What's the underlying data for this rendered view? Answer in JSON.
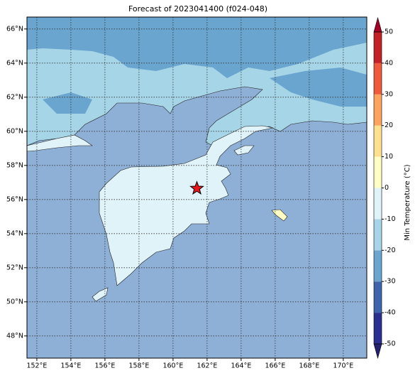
{
  "title": "Forecast of 2023041400 (f024-048)",
  "map": {
    "lonlim": [
      151.42,
      171.38
    ],
    "latlim": [
      46.7,
      66.7
    ],
    "lonticks": [
      {
        "value": 152,
        "label": "152°E"
      },
      {
        "value": 154,
        "label": "154°E"
      },
      {
        "value": 156,
        "label": "156°E"
      },
      {
        "value": 158,
        "label": "158°E"
      },
      {
        "value": 160,
        "label": "160°E"
      },
      {
        "value": 162,
        "label": "162°E"
      },
      {
        "value": 164,
        "label": "164°E"
      },
      {
        "value": 166,
        "label": "166°E"
      },
      {
        "value": 168,
        "label": "168°E"
      },
      {
        "value": 170,
        "label": "170°E"
      }
    ],
    "latticks": [
      {
        "value": 48,
        "label": "48°N"
      },
      {
        "value": 50,
        "label": "50°N"
      },
      {
        "value": 52,
        "label": "52°N"
      },
      {
        "value": 54,
        "label": "54°N"
      },
      {
        "value": 56,
        "label": "56°N"
      },
      {
        "value": 58,
        "label": "58°N"
      },
      {
        "value": 60,
        "label": "60°N"
      },
      {
        "value": 62,
        "label": "62°N"
      },
      {
        "value": 64,
        "label": "64°N"
      },
      {
        "value": 66,
        "label": "66°N"
      }
    ],
    "grid": true,
    "marker": {
      "lon": 161.4,
      "lat": 56.65,
      "color": "#e8161b"
    }
  },
  "colorbar": {
    "label": "Min Temperature (°C)",
    "lim": [
      -50,
      50
    ],
    "ticks": [
      -50,
      -40,
      -30,
      -20,
      -10,
      0,
      10,
      20,
      30,
      40,
      50
    ],
    "colors": [
      "#2b2f8f",
      "#3d64ad",
      "#6aa5cf",
      "#a7d5e8",
      "#e0f3f8",
      "#ffffc4",
      "#fee08f",
      "#fca45e",
      "#ee5a3b",
      "#c62027"
    ],
    "under_color": "#232170",
    "over_color": "#a50026"
  }
}
